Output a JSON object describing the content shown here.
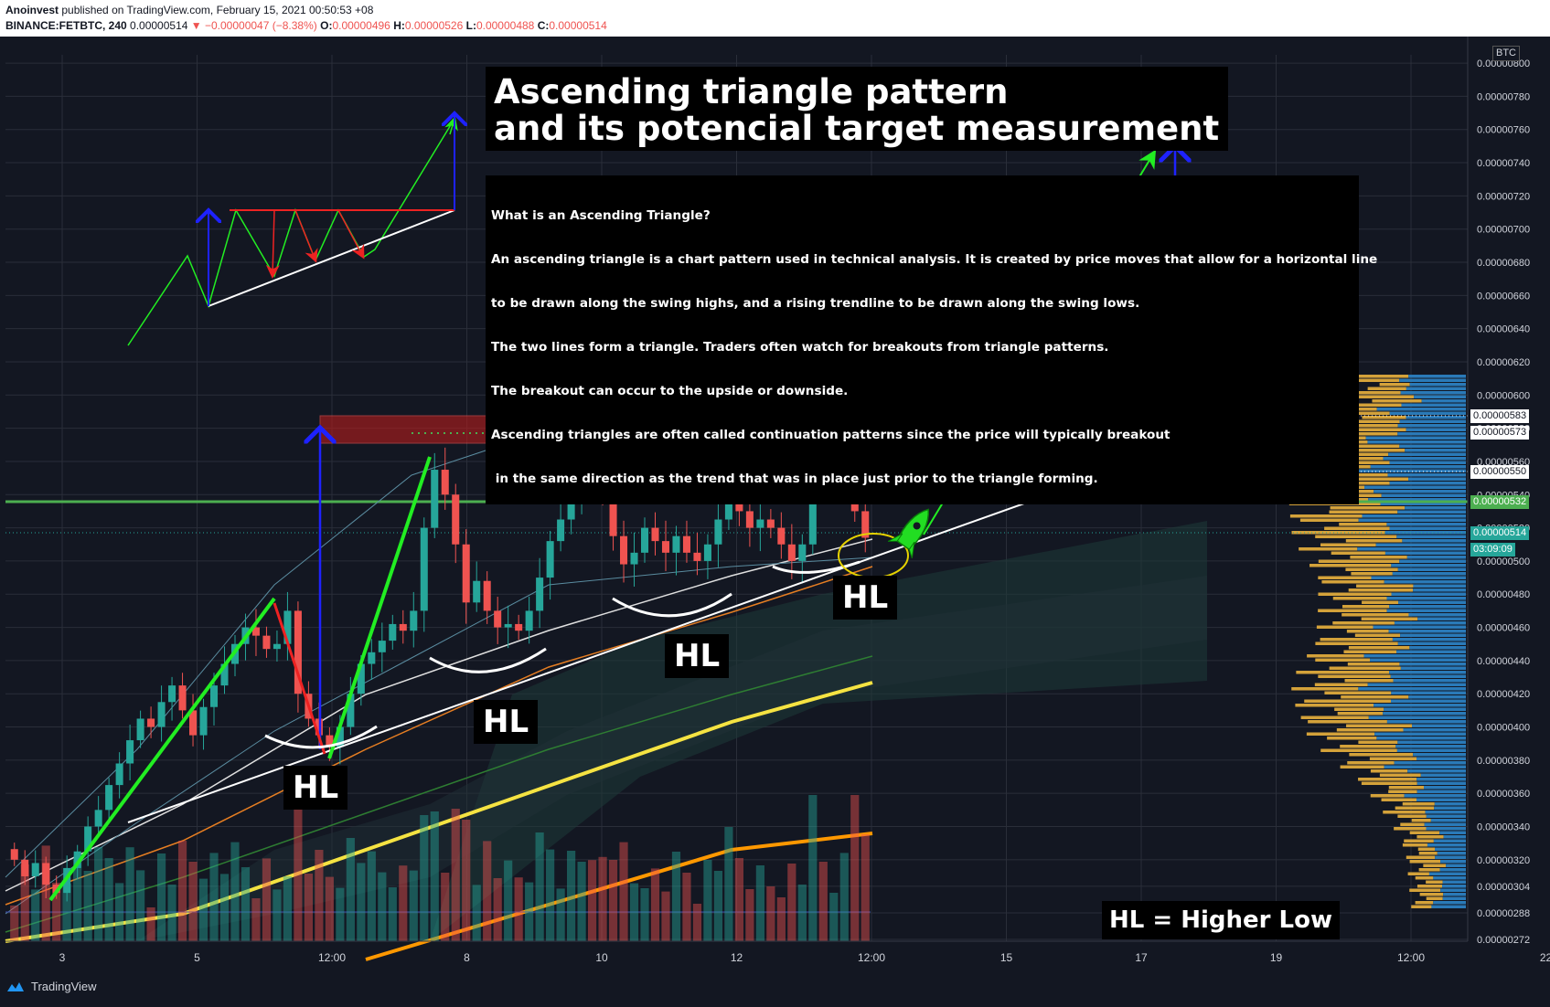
{
  "header": {
    "publisher": "Anoinvest",
    "published_text": "published on TradingView.com, February 15, 2021 00:50:53 +08",
    "symbol": "BINANCE:FETBTC, 240",
    "last": "0.00000514",
    "change": "▼ −0.00000047 (−8.38%)",
    "o_label": "O:",
    "o_value": "0.00000496",
    "h_label": "H:",
    "h_value": "0.00000526",
    "l_label": "L:",
    "l_value": "0.00000488",
    "c_label": "C:",
    "c_value": "0.00000514"
  },
  "annotations": {
    "title_line1": "Ascending triangle pattern",
    "title_line2": "and its potencial target measurement",
    "text_lines": [
      "What is an Ascending Triangle?",
      "An ascending triangle is a chart pattern used in technical analysis. It is created by price moves that allow for a horizontal line",
      "to be drawn along the swing highs, and a rising trendline to be drawn along the swing lows.",
      "The two lines form a triangle. Traders often watch for breakouts from triangle patterns.",
      "The breakout can occur to the upside or downside.",
      "Ascending triangles are often called continuation patterns since the price will typically breakout",
      " in the same direction as the trend that was in place just prior to the triangle forming."
    ],
    "hl_label": "HL",
    "legend": "HL = Higher Low"
  },
  "price_axis": {
    "currency": "BTC",
    "ticks": [
      "0.00000800",
      "0.00000780",
      "0.00000760",
      "0.00000740",
      "0.00000720",
      "0.00000700",
      "0.00000680",
      "0.00000660",
      "0.00000640",
      "0.00000620",
      "0.00000600",
      "0.00000580",
      "0.00000560",
      "0.00000540",
      "0.00000520",
      "0.00000500",
      "0.00000480",
      "0.00000460",
      "0.00000440",
      "0.00000420",
      "0.00000400",
      "0.00000380",
      "0.00000360",
      "0.00000340",
      "0.00000320",
      "0.00000304",
      "0.00000288",
      "0.00000272"
    ],
    "price_tags": [
      "0.00000583",
      "0.00000573",
      "0.00000550",
      "0.00000532",
      "0.00000514"
    ],
    "countdown": "03:09:09"
  },
  "time_axis": {
    "ticks": [
      "3",
      "5",
      "12:00",
      "8",
      "10",
      "12",
      "12:00",
      "15",
      "17",
      "19",
      "12:00",
      "22"
    ]
  },
  "footer": {
    "brand": "TradingView"
  },
  "colors": {
    "background": "#131722",
    "up": "#26a69a",
    "down": "#ef5350",
    "resistance_zone": "#b71c1c",
    "support_line": "#4caf50",
    "projection_arrow": "#1e22ff",
    "trend_green": "#22ee22",
    "volume_profile_up": "#2a7ab8",
    "volume_profile_down": "#d4a23a"
  },
  "chart_data": {
    "type": "candlestick",
    "symbol": "BINANCE:FETBTC",
    "interval": "240",
    "y_unit": "BTC",
    "ylim": [
      2.72e-06,
      8.05e-06
    ],
    "x_ticks": [
      "3",
      "5",
      "12:00",
      "8",
      "10",
      "12",
      "12:00",
      "15",
      "17",
      "19",
      "12:00",
      "22"
    ],
    "levels": {
      "resistance_zone": [
        5.73e-06,
        5.83e-06
      ],
      "support_line": 5.32e-06,
      "last_price": 5.14e-06
    },
    "candles_close_approx": [
      3.2e-06,
      3.1e-06,
      3.18e-06,
      3.05e-06,
      3e-06,
      3.15e-06,
      3.25e-06,
      3.4e-06,
      3.5e-06,
      3.65e-06,
      3.78e-06,
      3.92e-06,
      4.05e-06,
      4e-06,
      4.15e-06,
      4.25e-06,
      4.1e-06,
      3.95e-06,
      4.12e-06,
      4.25e-06,
      4.38e-06,
      4.5e-06,
      4.6e-06,
      4.55e-06,
      4.47e-06,
      4.5e-06,
      4.7e-06,
      4.2e-06,
      4.05e-06,
      3.95e-06,
      3.88e-06,
      4e-06,
      4.2e-06,
      4.38e-06,
      4.45e-06,
      4.52e-06,
      4.62e-06,
      4.58e-06,
      4.7e-06,
      5.2e-06,
      5.55e-06,
      5.4e-06,
      5.1e-06,
      4.75e-06,
      4.88e-06,
      4.7e-06,
      4.6e-06,
      4.62e-06,
      4.58e-06,
      4.7e-06,
      4.9e-06,
      5.12e-06,
      5.25e-06,
      5.4e-06,
      5.6e-06,
      5.56e-06,
      5.4e-06,
      5.15e-06,
      4.98e-06,
      5.05e-06,
      5.2e-06,
      5.12e-06,
      5.05e-06,
      5.15e-06,
      5.05e-06,
      5e-06,
      5.1e-06,
      5.25e-06,
      5.45e-06,
      5.3e-06,
      5.2e-06,
      5.25e-06,
      5.2e-06,
      5.1e-06,
      5e-06,
      5.1e-06,
      5.75e-06,
      5.6e-06,
      5.7e-06,
      5.83e-06,
      5.3e-06,
      5.14e-06
    ]
  }
}
